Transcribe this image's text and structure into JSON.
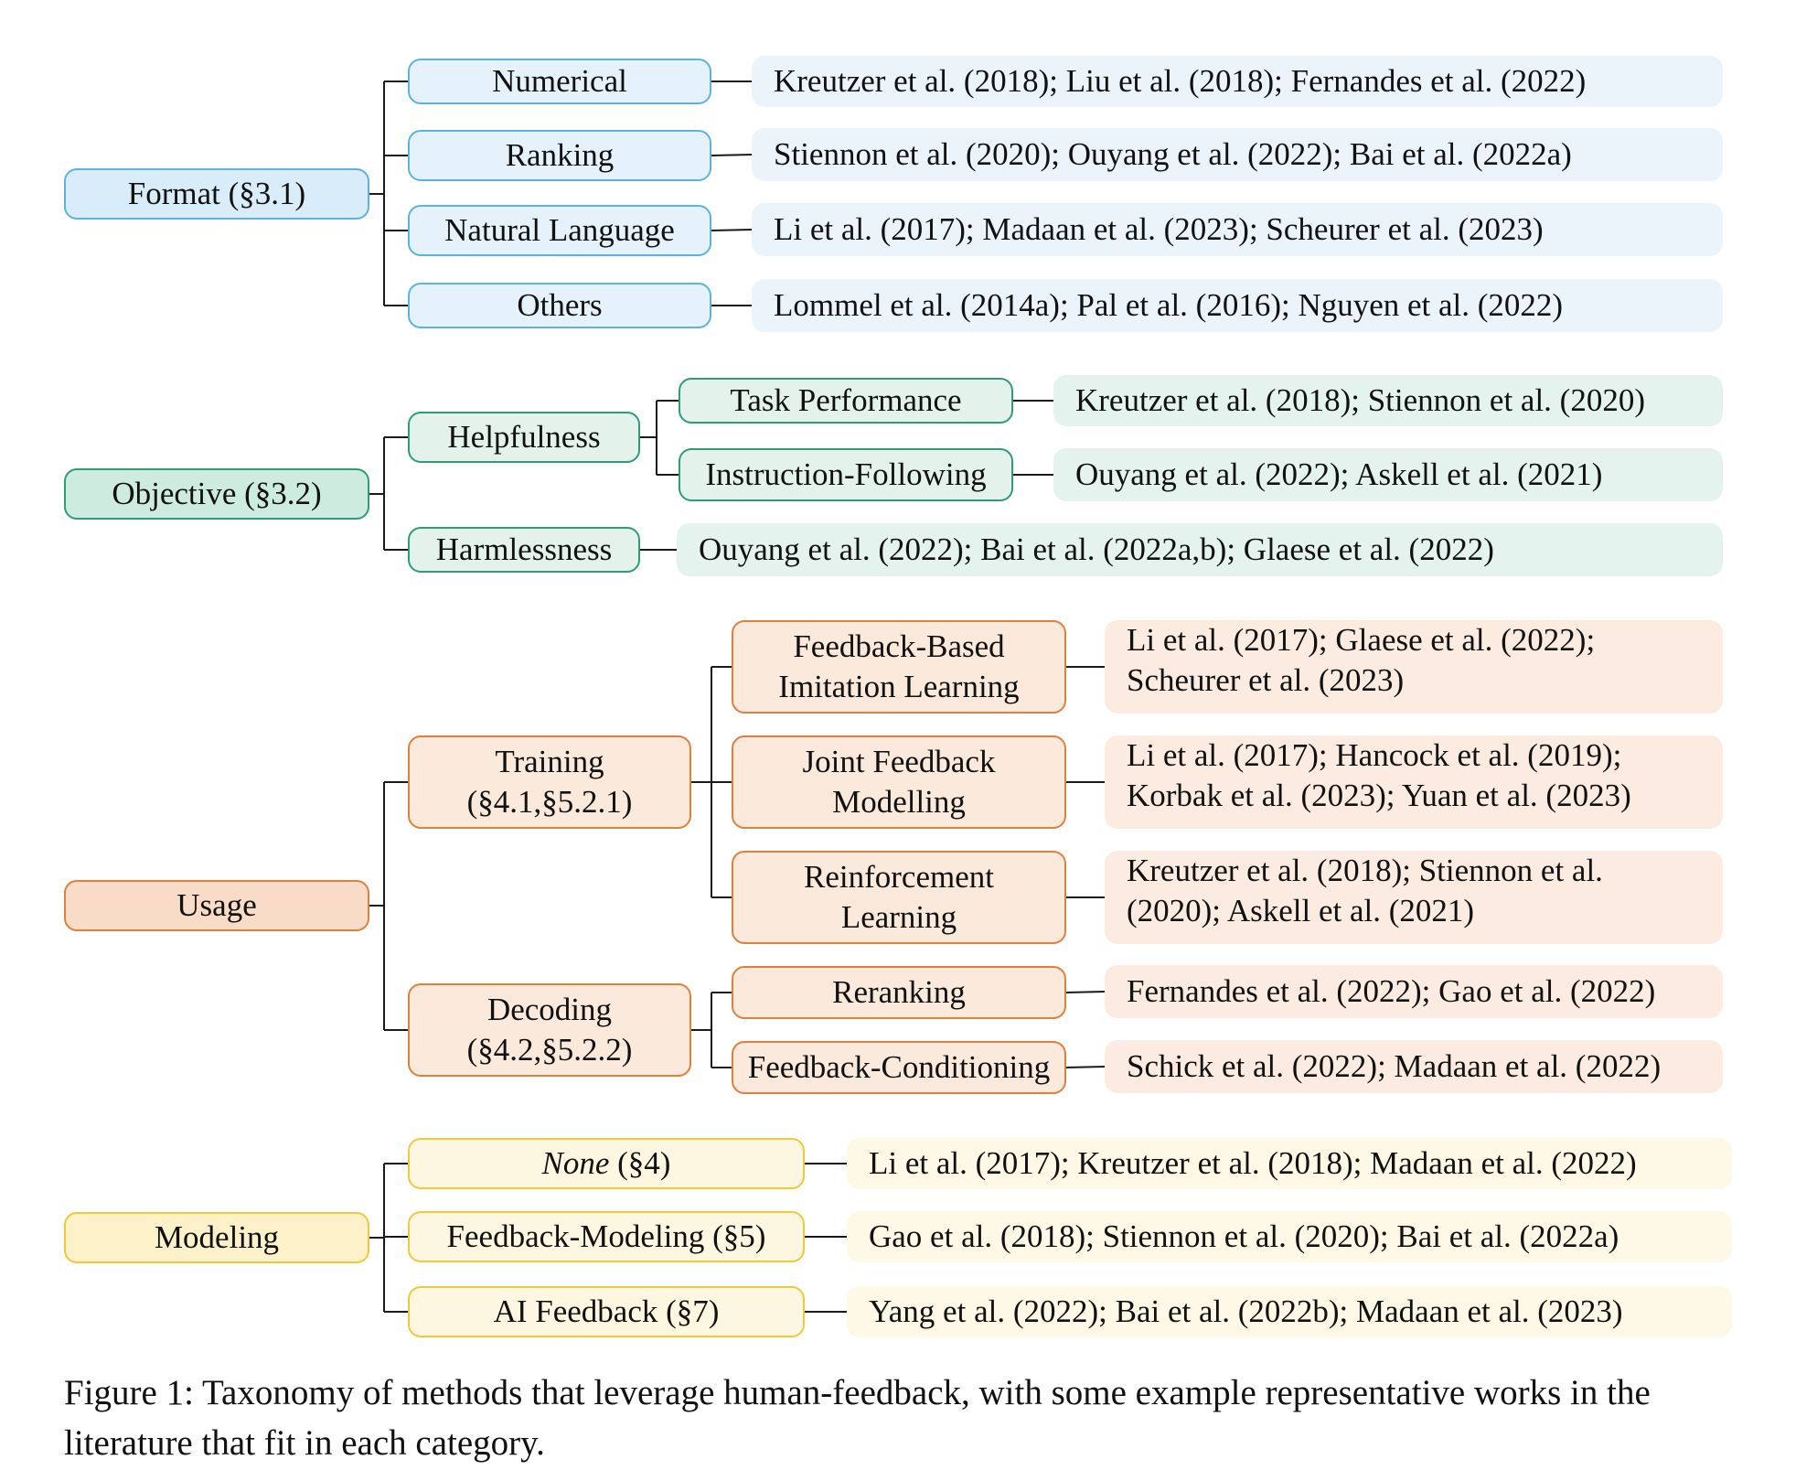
{
  "groups": [
    {
      "theme": "blue",
      "root": "Format (§3.1)",
      "children": [
        {
          "label": "Numerical",
          "refs": "Kreutzer et al. (2018); Liu et al. (2018); Fernandes et al. (2022)"
        },
        {
          "label": "Ranking",
          "refs": "Stiennon et al. (2020); Ouyang et al. (2022); Bai et al. (2022a)"
        },
        {
          "label": "Natural Language",
          "refs": "Li et al. (2017); Madaan et al. (2023); Scheurer et al. (2023)"
        },
        {
          "label": "Others",
          "refs": "Lommel et al. (2014a); Pal et al. (2016); Nguyen et al. (2022)"
        }
      ]
    },
    {
      "theme": "green",
      "root": "Objective (§3.2)",
      "children": [
        {
          "label": "Helpfulness",
          "children": [
            {
              "label": "Task Performance",
              "refs": "Kreutzer et al. (2018); Stiennon et al. (2020)"
            },
            {
              "label": "Instruction-Following",
              "refs": "Ouyang et al. (2022); Askell et al. (2021)"
            }
          ]
        },
        {
          "label": "Harmlessness",
          "refs": "Ouyang et al. (2022); Bai et al. (2022a,b); Glaese et al. (2022)"
        }
      ]
    },
    {
      "theme": "orange",
      "root": "Usage",
      "children": [
        {
          "label": "Training\n(§4.1,§5.2.1)",
          "children": [
            {
              "label": "Feedback-Based\nImitation Learning",
              "refs": "Li et al. (2017); Glaese et al. (2022);\nScheurer et al. (2023)"
            },
            {
              "label": "Joint Feedback\nModelling",
              "refs": "Li et al. (2017); Hancock et al. (2019);\nKorbak et al. (2023); Yuan et al. (2023)"
            },
            {
              "label": "Reinforcement\nLearning",
              "refs": "Kreutzer et al. (2018); Stiennon et al.\n(2020); Askell et al. (2021)"
            }
          ]
        },
        {
          "label": "Decoding\n(§4.2,§5.2.2)",
          "children": [
            {
              "label": "Reranking",
              "refs": "Fernandes et al. (2022); Gao et al. (2022)"
            },
            {
              "label": "Feedback-Conditioning",
              "refs": "Schick et al. (2022); Madaan et al. (2022)"
            }
          ]
        }
      ]
    },
    {
      "theme": "yellow",
      "root": "Modeling",
      "children": [
        {
          "label_em": "None",
          "label_rest": " (§4)",
          "refs": "Li et al. (2017); Kreutzer et al. (2018); Madaan et al. (2022)"
        },
        {
          "label": "Feedback-Modeling (§5)",
          "refs": "Gao et al. (2018); Stiennon et al. (2020); Bai et al. (2022a)"
        },
        {
          "label": "AI Feedback (§7)",
          "refs": "Yang et al. (2022); Bai et al. (2022b); Madaan et al. (2023)"
        }
      ]
    }
  ],
  "caption": "Figure 1: Taxonomy of methods that leverage human-feedback, with some example representative works in the literature that fit in each category."
}
